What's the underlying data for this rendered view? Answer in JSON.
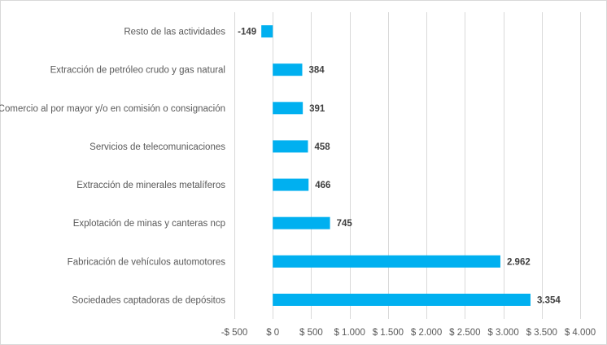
{
  "chart_data": {
    "type": "bar",
    "orientation": "horizontal",
    "title": "",
    "xlabel": "",
    "ylabel": "",
    "categories": [
      "Resto de las actividades",
      "Extracción de petróleo crudo y gas natural",
      "Comercio al por mayor y/o en comisión o consignación",
      "Servicios de telecomunicaciones",
      "Extracción de minerales metalíferos",
      "Explotación de minas y canteras ncp",
      "Fabricación de vehículos automotores",
      "Sociedades captadoras de depósitos"
    ],
    "values": [
      -149,
      384,
      391,
      458,
      466,
      745,
      2962,
      3354
    ],
    "value_labels": [
      "-149",
      "384",
      "391",
      "458",
      "466",
      "745",
      "2.962",
      "3.354"
    ],
    "xlim": [
      -500,
      4000
    ],
    "xticks": [
      -500,
      0,
      500,
      1000,
      1500,
      2000,
      2500,
      3000,
      3500,
      4000
    ],
    "xtick_labels": [
      "-$ 500",
      "$ 0",
      "$ 500",
      "$ 1.000",
      "$ 1.500",
      "$ 2.000",
      "$ 2.500",
      "$ 3.000",
      "$ 3.500",
      "$ 4.000"
    ],
    "grid": "vertical",
    "legend": "none",
    "bar_color": "#00b0f0",
    "grid_color": "#d9d9d9"
  }
}
